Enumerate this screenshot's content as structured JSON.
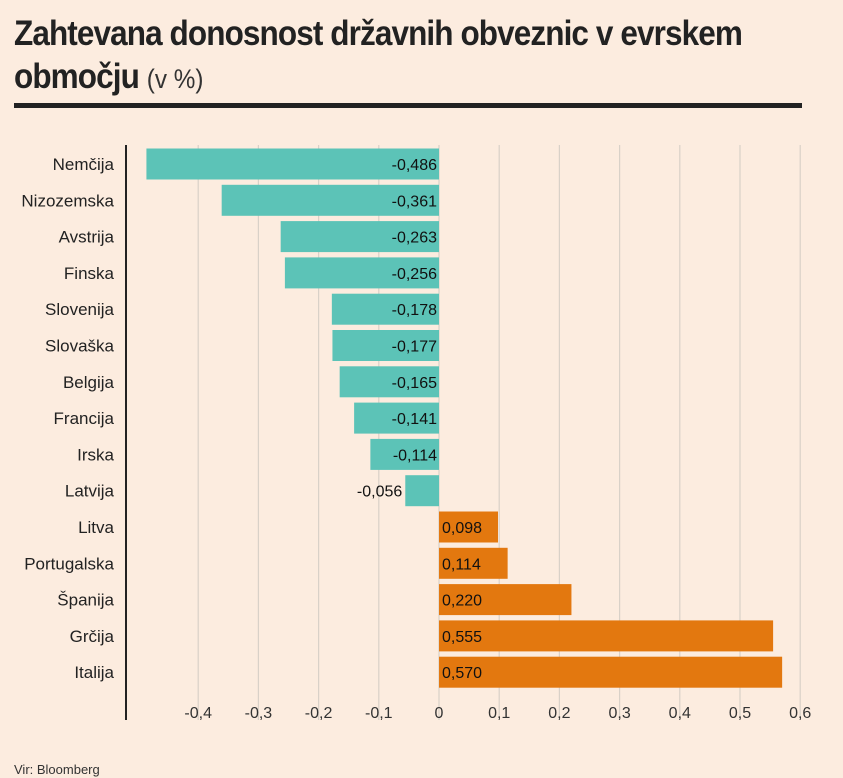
{
  "title": {
    "main_line1": "Zahtevana donosnost državnih obveznic v evrskem",
    "main_line2": "območju",
    "unit": "(v %)"
  },
  "source": "Vir: Bloomberg",
  "colors": {
    "background": "#fcecdf",
    "negative_bar": "#5cc3b7",
    "positive_bar": "#e3780f",
    "gridline": "#d9d1c8",
    "axis": "#222222"
  },
  "chart_data": {
    "type": "bar",
    "orientation": "horizontal",
    "title": "Zahtevana donosnost državnih obveznic v evrskem območju (v %)",
    "xlabel": "",
    "ylabel": "",
    "xlim": [
      -0.5,
      0.6
    ],
    "grid": true,
    "categories": [
      "Nemčija",
      "Nizozemska",
      "Avstrija",
      "Finska",
      "Slovenija",
      "Slovaška",
      "Belgija",
      "Francija",
      "Irska",
      "Latvija",
      "Litva",
      "Portugalska",
      "Španija",
      "Grčija",
      "Italija"
    ],
    "values": [
      -0.486,
      -0.361,
      -0.263,
      -0.256,
      -0.178,
      -0.177,
      -0.165,
      -0.141,
      -0.114,
      -0.056,
      0.098,
      0.114,
      0.22,
      0.555,
      0.57
    ],
    "value_labels": [
      "-0,486",
      "-0,361",
      "-0,263",
      "-0,256",
      "-0,178",
      "-0,177",
      "-0,165",
      "-0,141",
      "-0,114",
      "-0,056",
      "0,098",
      "0,114",
      "0,220",
      "0,555",
      "0,570"
    ],
    "ticks": [
      -0.4,
      -0.3,
      -0.2,
      -0.1,
      0,
      0.1,
      0.2,
      0.3,
      0.4,
      0.5,
      0.6
    ],
    "tick_labels": [
      "-0,4",
      "-0,3",
      "-0,2",
      "-0,1",
      "0",
      "0,1",
      "0,2",
      "0,3",
      "0,4",
      "0,5",
      "0,6"
    ]
  }
}
